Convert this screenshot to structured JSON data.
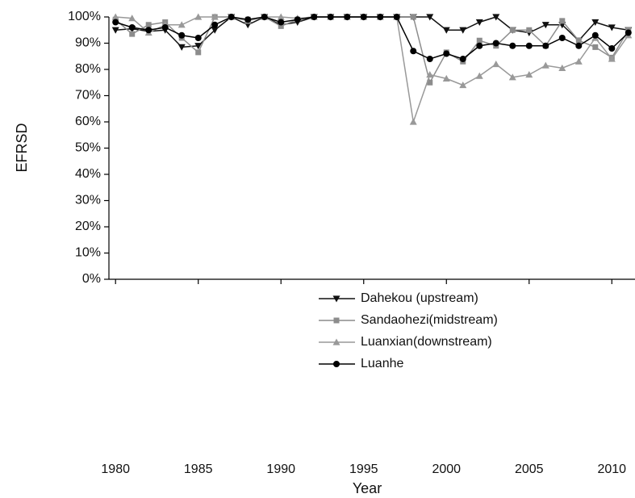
{
  "chart_data": {
    "type": "line",
    "xlabel": "Year",
    "ylabel": "EFRSD",
    "x": [
      1980,
      1981,
      1982,
      1983,
      1984,
      1985,
      1986,
      1987,
      1988,
      1989,
      1990,
      1991,
      1992,
      1993,
      1994,
      1995,
      1996,
      1997,
      1998,
      1999,
      2000,
      2001,
      2002,
      2003,
      2004,
      2005,
      2006,
      2007,
      2008,
      2009,
      2010,
      2011
    ],
    "series": [
      {
        "name": "Dahekou (upstream)",
        "color": "#111111",
        "marker": "triangle-down",
        "values": [
          95,
          95.5,
          94.5,
          95,
          88.5,
          89,
          95,
          100,
          97,
          100,
          97,
          98,
          100,
          100,
          100,
          100,
          100,
          100,
          100,
          100,
          95,
          95,
          98,
          100,
          95,
          94,
          97,
          97,
          91,
          98,
          96,
          95
        ]
      },
      {
        "name": "Sandaohezi(midstream)",
        "color": "#8c8c8c",
        "marker": "square",
        "values": [
          99,
          93.5,
          97,
          98,
          92,
          86.5,
          100,
          100,
          99,
          100,
          96.5,
          99,
          100,
          100,
          100,
          100,
          100,
          100,
          100,
          75,
          86.5,
          83,
          91,
          89,
          95,
          95,
          89,
          98.5,
          91,
          88.5,
          84.5,
          95
        ]
      },
      {
        "name": "Luanxian(downstream)",
        "color": "#999999",
        "marker": "triangle-up",
        "values": [
          100,
          99.5,
          94,
          97,
          97,
          100,
          100,
          100,
          98.5,
          100,
          100,
          99.5,
          100,
          100,
          100,
          100,
          100,
          100,
          60,
          78,
          76.5,
          74,
          77.5,
          82,
          77,
          78,
          81.5,
          80.5,
          83,
          92,
          84,
          93
        ]
      },
      {
        "name": "Luanhe",
        "color": "#000000",
        "marker": "circle",
        "values": [
          98,
          96,
          95,
          96,
          93,
          92,
          97,
          100,
          99,
          100,
          98,
          99,
          100,
          100,
          100,
          100,
          100,
          100,
          87,
          84,
          86,
          84,
          89,
          90,
          89,
          89,
          89,
          92,
          89,
          93,
          88,
          94
        ]
      }
    ],
    "xlim": [
      1979.6,
      2011.4
    ],
    "xticks": [
      1980,
      1985,
      1990,
      1995,
      2000,
      2005,
      2010
    ],
    "ylim": [
      0,
      100
    ],
    "yticks": [
      {
        "value": 0,
        "label": "0%"
      },
      {
        "value": 10,
        "label": "10%"
      },
      {
        "value": 20,
        "label": "20%"
      },
      {
        "value": 30,
        "label": "30%"
      },
      {
        "value": 40,
        "label": "40%"
      },
      {
        "value": 50,
        "label": "50%"
      },
      {
        "value": 60,
        "label": "60%"
      },
      {
        "value": 70,
        "label": "70%"
      },
      {
        "value": 80,
        "label": "80%"
      },
      {
        "value": 90,
        "label": "90%"
      },
      {
        "value": 100,
        "label": "100%"
      }
    ],
    "grid": false,
    "legend": "center"
  }
}
